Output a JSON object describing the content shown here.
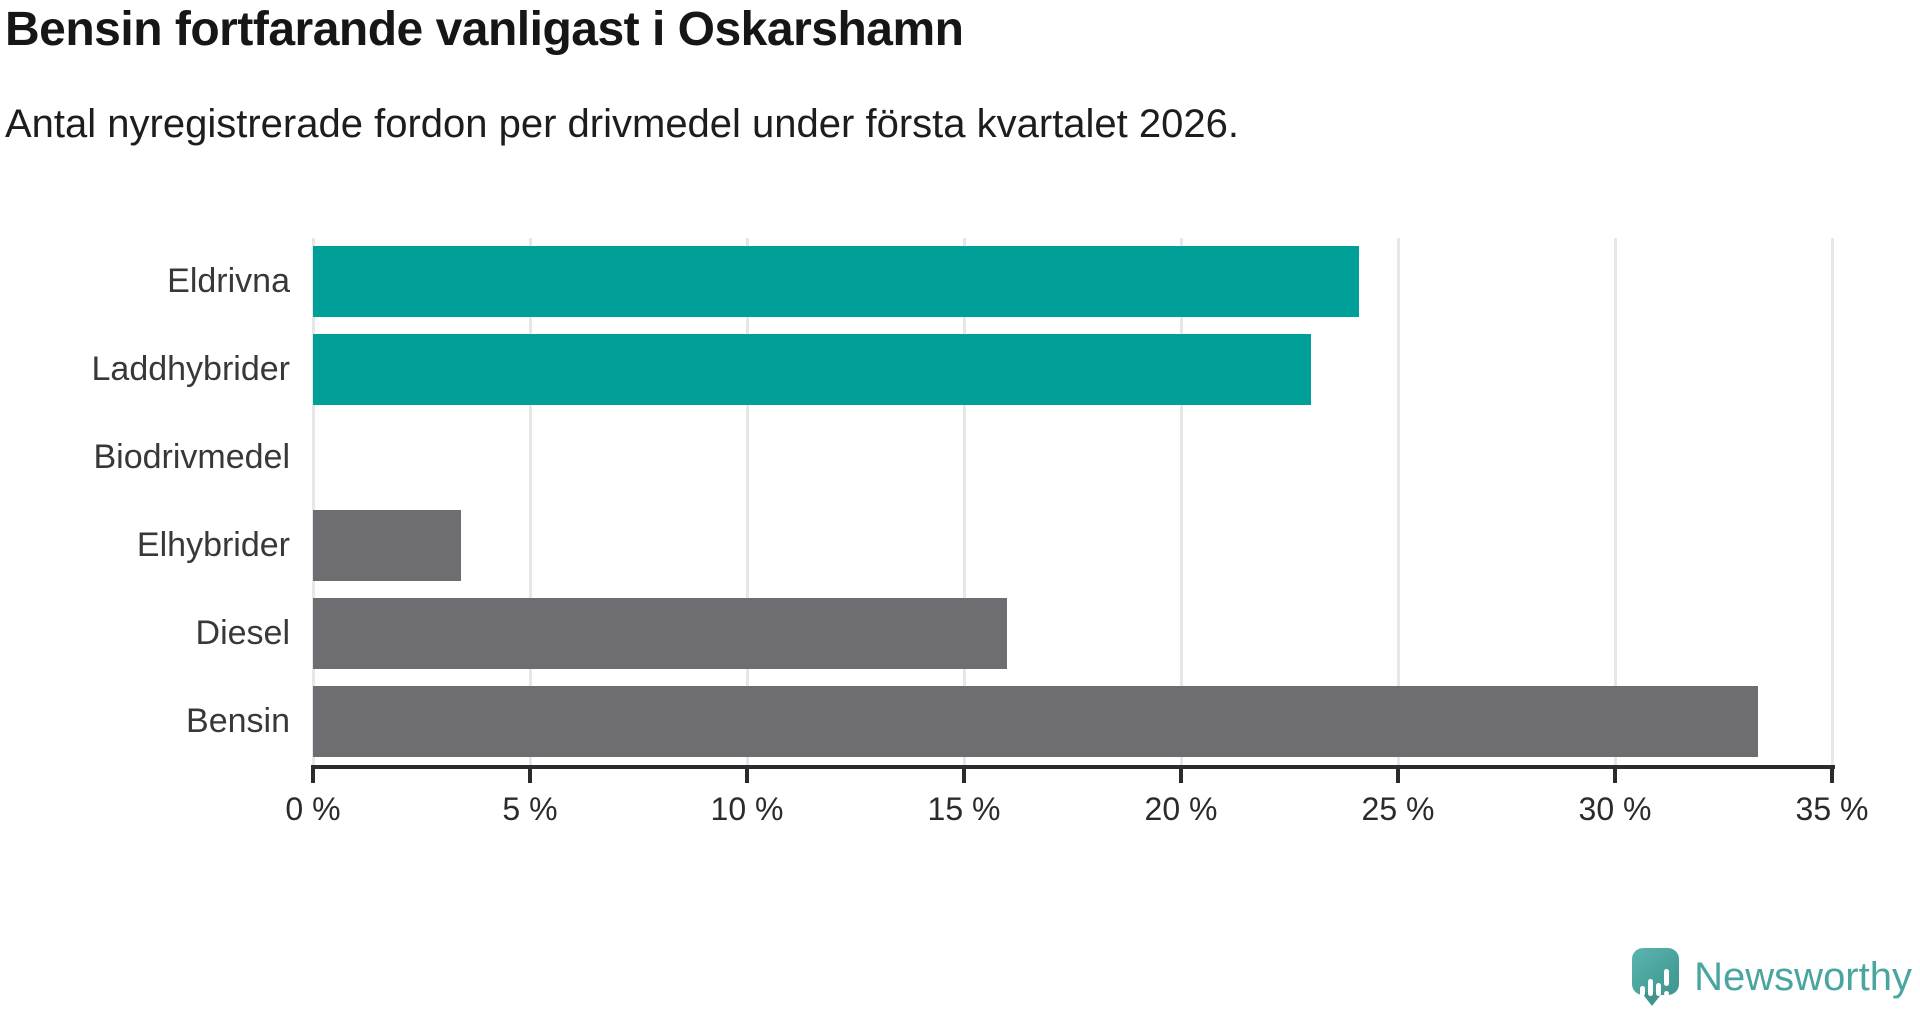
{
  "chart_data": {
    "type": "bar",
    "orientation": "horizontal",
    "title": "Bensin fortfarande vanligast i Oskarshamn",
    "subtitle": "Antal nyregistrerade fordon per drivmedel under första kvartalet 2026.",
    "categories": [
      "Eldrivna",
      "Laddhybrider",
      "Biodrivmedel",
      "Elhybrider",
      "Diesel",
      "Bensin"
    ],
    "values": [
      24.1,
      23,
      0,
      3.4,
      16,
      33.3
    ],
    "value_unit": "%",
    "bar_colors": [
      "#00a099",
      "#00a099",
      "#00a099",
      "#6d6d72",
      "#6d6d72",
      "#6d6d72"
    ],
    "highlight_color": "#00a099",
    "base_color": "#6d6d72",
    "xlim": [
      0,
      35
    ],
    "x_tick_values": [
      0,
      5,
      10,
      15,
      20,
      25,
      30,
      35
    ],
    "x_tick_labels": [
      "0 %",
      "5 %",
      "10 %",
      "15 %",
      "20 %",
      "25 %",
      "30 %",
      "35 %"
    ],
    "grid": true,
    "legend": "none",
    "gridline_color": "#e7e7e9",
    "axis_color": "#2b2b2b"
  },
  "footer": {
    "brand": "Newsworthy",
    "brand_color": "#4aa5a0",
    "logo_icon": "bar-chart-speech-bubble-icon"
  }
}
